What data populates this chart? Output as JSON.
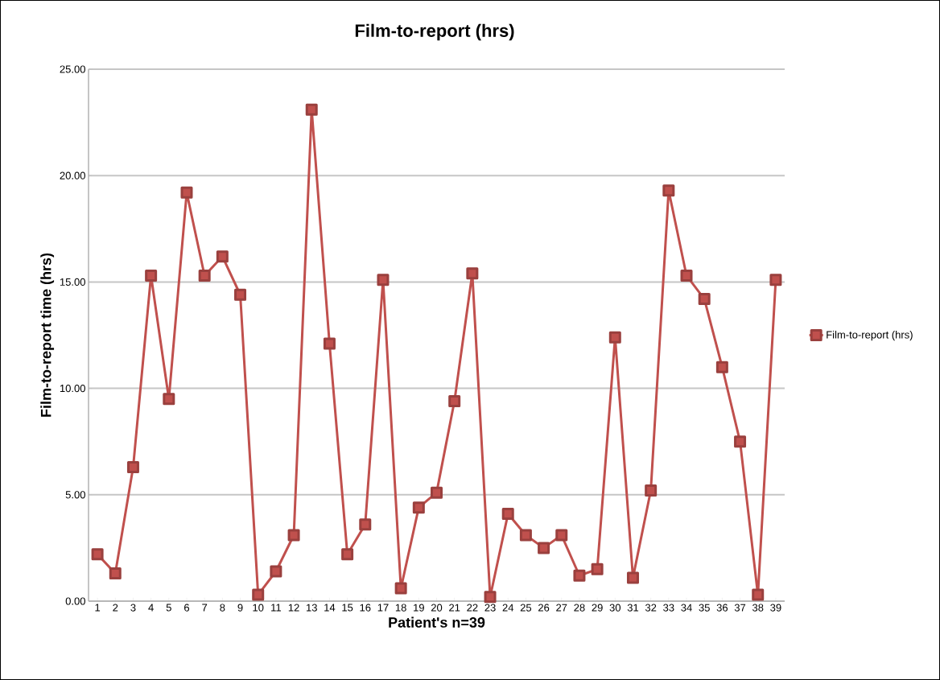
{
  "chart_data": {
    "type": "line",
    "title": "Film-to-report (hrs)",
    "xlabel": "Patient's n=39",
    "ylabel": "Film-to-report time (hrs)",
    "categories": [
      "1",
      "2",
      "3",
      "4",
      "5",
      "6",
      "7",
      "8",
      "9",
      "10",
      "11",
      "12",
      "13",
      "14",
      "15",
      "16",
      "17",
      "18",
      "19",
      "20",
      "21",
      "22",
      "23",
      "24",
      "25",
      "26",
      "27",
      "28",
      "29",
      "30",
      "31",
      "32",
      "33",
      "34",
      "35",
      "36",
      "37",
      "38",
      "39"
    ],
    "series": [
      {
        "name": "Film-to-report (hrs)",
        "color": "#c0504d",
        "values": [
          2.2,
          1.3,
          6.3,
          15.3,
          9.5,
          19.2,
          15.3,
          16.2,
          14.4,
          0.3,
          1.4,
          3.1,
          23.1,
          12.1,
          2.2,
          3.6,
          15.1,
          0.6,
          4.4,
          5.1,
          9.4,
          15.4,
          0.2,
          4.1,
          3.1,
          2.5,
          3.1,
          1.2,
          1.5,
          12.4,
          1.1,
          5.2,
          19.3,
          15.3,
          14.2,
          11.0,
          7.5,
          0.3,
          15.1
        ]
      }
    ],
    "ylim": [
      0,
      25
    ],
    "yticks": [
      {
        "value": 0,
        "label": "0.00"
      },
      {
        "value": 5,
        "label": "5.00"
      },
      {
        "value": 10,
        "label": "10.00"
      },
      {
        "value": 15,
        "label": "15.00"
      },
      {
        "value": 20,
        "label": "20.00"
      },
      {
        "value": 25,
        "label": "25.00"
      }
    ],
    "grid": "y",
    "legend": "right",
    "marker": "square",
    "line_style": "solid"
  }
}
